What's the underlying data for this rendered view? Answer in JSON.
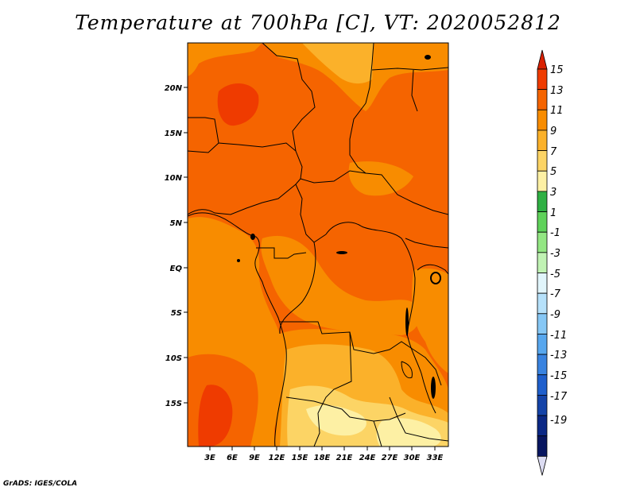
{
  "title": "Temperature at 700hPa [C], VT: 2020052812",
  "credit": "GrADS: IGES/COLA",
  "map": {
    "lat_ticks": [
      "20N",
      "15N",
      "10N",
      "5N",
      "EQ",
      "5S",
      "10S",
      "15S"
    ],
    "lon_ticks": [
      "3E",
      "6E",
      "9E",
      "12E",
      "15E",
      "18E",
      "21E",
      "24E",
      "27E",
      "30E",
      "33E"
    ]
  },
  "colorbar": {
    "labels": [
      "15",
      "13",
      "11",
      "9",
      "7",
      "5",
      "3",
      "1",
      "-1",
      "-3",
      "-5",
      "-7",
      "-9",
      "-11",
      "-13",
      "-15",
      "-17",
      "-19"
    ],
    "colors": [
      "#d92000",
      "#ef3b00",
      "#f56400",
      "#f88c00",
      "#fbb12a",
      "#fcd465",
      "#fdf0a4",
      "#2fb043",
      "#5fd25a",
      "#93e683",
      "#c0f2b3",
      "#e1f5fb",
      "#b6e1fa",
      "#86c7f5",
      "#58a7ee",
      "#3983e0",
      "#1f5fcc",
      "#1443a8",
      "#0b2885",
      "#081660",
      "#dcdcf2"
    ]
  }
}
